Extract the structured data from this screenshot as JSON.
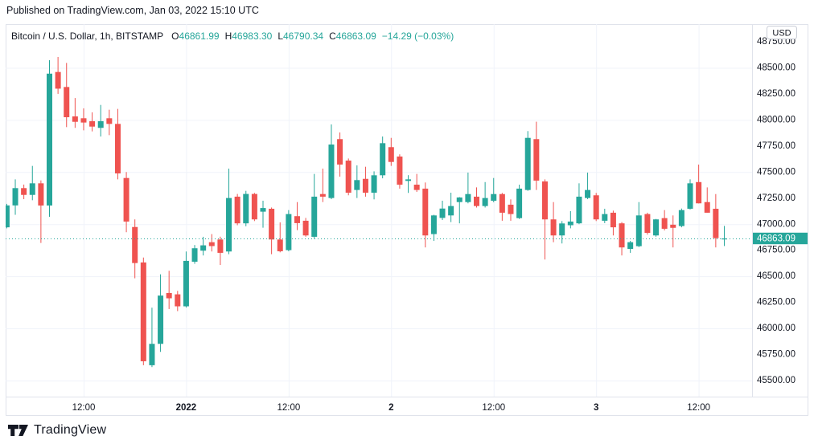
{
  "published_bar": {
    "text": "Published on TradingView.com, Jan 03, 2022 15:10 UTC"
  },
  "legend": {
    "symbol": "Bitcoin / U.S. Dollar, 1h, BITSTAMP",
    "open_label": "O",
    "open": "46861.99",
    "high_label": "H",
    "high": "46983.30",
    "low_label": "L",
    "low": "46790.34",
    "close_label": "C",
    "close": "46863.09",
    "change": "−14.29 (−0.03%)"
  },
  "price_axis": {
    "currency_badge": "USD",
    "ticks": [
      "48750.00",
      "48500.00",
      "48250.00",
      "48000.00",
      "47750.00",
      "47500.00",
      "47250.00",
      "47000.00",
      "46750.00",
      "46500.00",
      "46250.00",
      "46000.00",
      "45750.00",
      "45500.00"
    ],
    "last_price_label": "46863.09"
  },
  "time_axis": {
    "ticks": [
      {
        "index": 9,
        "label": "12:00",
        "bold": false
      },
      {
        "index": 21,
        "label": "2022",
        "bold": true
      },
      {
        "index": 33,
        "label": "12:00",
        "bold": false
      },
      {
        "index": 45,
        "label": "2",
        "bold": true
      },
      {
        "index": 57,
        "label": "12:00",
        "bold": false
      },
      {
        "index": 69,
        "label": "3",
        "bold": true
      },
      {
        "index": 81,
        "label": "12:00",
        "bold": false
      }
    ]
  },
  "footer": {
    "brand": "TradingView"
  },
  "colors": {
    "up": "#26a69a",
    "down": "#ef5350",
    "grid": "#f0f3fa",
    "axis_border": "#e0e3eb",
    "text": "#131722",
    "badge_text": "#ffffff",
    "badge_border": "#c9cdd6"
  },
  "chart_data": {
    "type": "candlestick",
    "title": "Bitcoin / U.S. Dollar, 1h, BITSTAMP",
    "interval": "1h",
    "exchange": "BITSTAMP",
    "last_price": 46863.09,
    "change": -14.29,
    "change_pct": -0.03,
    "y_axis": {
      "min": 45500,
      "max": 48750,
      "label_step": 250,
      "grid_step": 500,
      "unit": "USD"
    },
    "grid_prices": [
      48500,
      48000,
      47500,
      47000,
      46500,
      46000,
      45500
    ],
    "candles_note": "hourly OHLC, Dec 31 03:00 UTC through Jan 3 15:00 UTC, values estimated from axis",
    "candles": [
      [
        46970,
        47195,
        46960,
        47180
      ],
      [
        47180,
        47430,
        47090,
        47346
      ],
      [
        47346,
        47380,
        47240,
        47281
      ],
      [
        47281,
        47559,
        47230,
        47392
      ],
      [
        47392,
        47420,
        46820,
        47179
      ],
      [
        47179,
        48573,
        47071,
        48444
      ],
      [
        48460,
        48604,
        48250,
        48300
      ],
      [
        48316,
        48547,
        47931,
        48026
      ],
      [
        48034,
        48210,
        47924,
        47982
      ],
      [
        48016,
        48111,
        47900,
        47975
      ],
      [
        47988,
        48073,
        47890,
        47936
      ],
      [
        47924,
        48144,
        47841,
        47988
      ],
      [
        48016,
        48098,
        47854,
        47962
      ],
      [
        47962,
        48106,
        47430,
        47487
      ],
      [
        47443,
        47500,
        46923,
        47025
      ],
      [
        46973,
        47046,
        46481,
        46627
      ],
      [
        46633,
        46680,
        45647,
        45685
      ],
      [
        45647,
        46199,
        45629,
        45852
      ],
      [
        45852,
        46519,
        45775,
        46315
      ],
      [
        46340,
        46553,
        46186,
        46289
      ],
      [
        46327,
        46360,
        46166,
        46212
      ],
      [
        46212,
        46738,
        46200,
        46648
      ],
      [
        46640,
        46800,
        46620,
        46769
      ],
      [
        46746,
        46879,
        46700,
        46797
      ],
      [
        46827,
        46905,
        46738,
        46790
      ],
      [
        46853,
        46880,
        46609,
        46725
      ],
      [
        46738,
        47533,
        46712,
        47251
      ],
      [
        47264,
        47290,
        46990,
        47008
      ],
      [
        47008,
        47320,
        46980,
        47290
      ],
      [
        47290,
        47300,
        47030,
        47046
      ],
      [
        47120,
        47225,
        46966,
        47155
      ],
      [
        47148,
        47160,
        46712,
        46853
      ],
      [
        46853,
        47017,
        46730,
        46740
      ],
      [
        46751,
        47135,
        46740,
        47097
      ],
      [
        47077,
        47212,
        46943,
        47010
      ],
      [
        47033,
        47060,
        46880,
        46892
      ],
      [
        46879,
        47482,
        46860,
        47264
      ],
      [
        47289,
        47533,
        47212,
        47264
      ],
      [
        47251,
        47957,
        47240,
        47764
      ],
      [
        47816,
        47880,
        47456,
        47572
      ],
      [
        47610,
        47630,
        47277,
        47302
      ],
      [
        47328,
        47564,
        47251,
        47423
      ],
      [
        47435,
        47551,
        47264,
        47302
      ],
      [
        47302,
        47507,
        47238,
        47469
      ],
      [
        47469,
        47841,
        47440,
        47777
      ],
      [
        47739,
        47828,
        47559,
        47597
      ],
      [
        47649,
        47670,
        47341,
        47379
      ],
      [
        47415,
        47470,
        47300,
        47430
      ],
      [
        47379,
        47482,
        47310,
        47328
      ],
      [
        47341,
        47400,
        46777,
        46892
      ],
      [
        46905,
        47090,
        46840,
        47084
      ],
      [
        47060,
        47225,
        47040,
        47150
      ],
      [
        47084,
        47302,
        47020,
        47174
      ],
      [
        47212,
        47260,
        47008,
        47256
      ],
      [
        47212,
        47495,
        47200,
        47289
      ],
      [
        47264,
        47353,
        47160,
        47174
      ],
      [
        47174,
        47404,
        47160,
        47251
      ],
      [
        47225,
        47443,
        47210,
        47289
      ],
      [
        47289,
        47300,
        47033,
        47110
      ],
      [
        47187,
        47238,
        47033,
        47097
      ],
      [
        47058,
        47379,
        47050,
        47341
      ],
      [
        47328,
        47893,
        47320,
        47828
      ],
      [
        47816,
        47983,
        47328,
        47418
      ],
      [
        47410,
        47430,
        46661,
        47046
      ],
      [
        47046,
        47212,
        46827,
        46892
      ],
      [
        46892,
        47030,
        46815,
        47007
      ],
      [
        46990,
        47125,
        46960,
        47025
      ],
      [
        47008,
        47392,
        47000,
        47264
      ],
      [
        47251,
        47495,
        47240,
        47328
      ],
      [
        47277,
        47300,
        47030,
        47046
      ],
      [
        47033,
        47148,
        47010,
        47097
      ],
      [
        47110,
        47130,
        46892,
        46970
      ],
      [
        47008,
        47020,
        46700,
        46777
      ],
      [
        46763,
        46840,
        46725,
        46827
      ],
      [
        46789,
        47212,
        46780,
        47084
      ],
      [
        47097,
        47110,
        46900,
        46917
      ],
      [
        46892,
        47050,
        46880,
        47046
      ],
      [
        47058,
        47135,
        46940,
        46956
      ],
      [
        46995,
        47084,
        46777,
        46965
      ],
      [
        46982,
        47150,
        46970,
        47135
      ],
      [
        47148,
        47430,
        47140,
        47392
      ],
      [
        47404,
        47572,
        47199,
        47200
      ],
      [
        47212,
        47353,
        47110,
        47110
      ],
      [
        47148,
        47289,
        46777,
        46866
      ],
      [
        46861.99,
        46983.3,
        46790.34,
        46863.09
      ]
    ]
  }
}
